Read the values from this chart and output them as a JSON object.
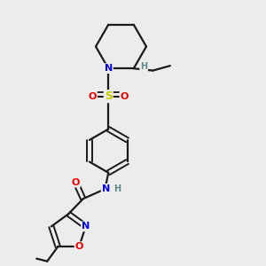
{
  "background_color": "#ececec",
  "bond_color": "#1a1a1a",
  "atom_colors": {
    "N": "#0000ee",
    "O": "#ee0000",
    "S": "#cccc00",
    "H": "#5c8a8a",
    "C": "#1a1a1a"
  },
  "figsize": [
    3.0,
    3.0
  ],
  "dpi": 100,
  "xlim": [
    0,
    10
  ],
  "ylim": [
    0,
    10
  ]
}
